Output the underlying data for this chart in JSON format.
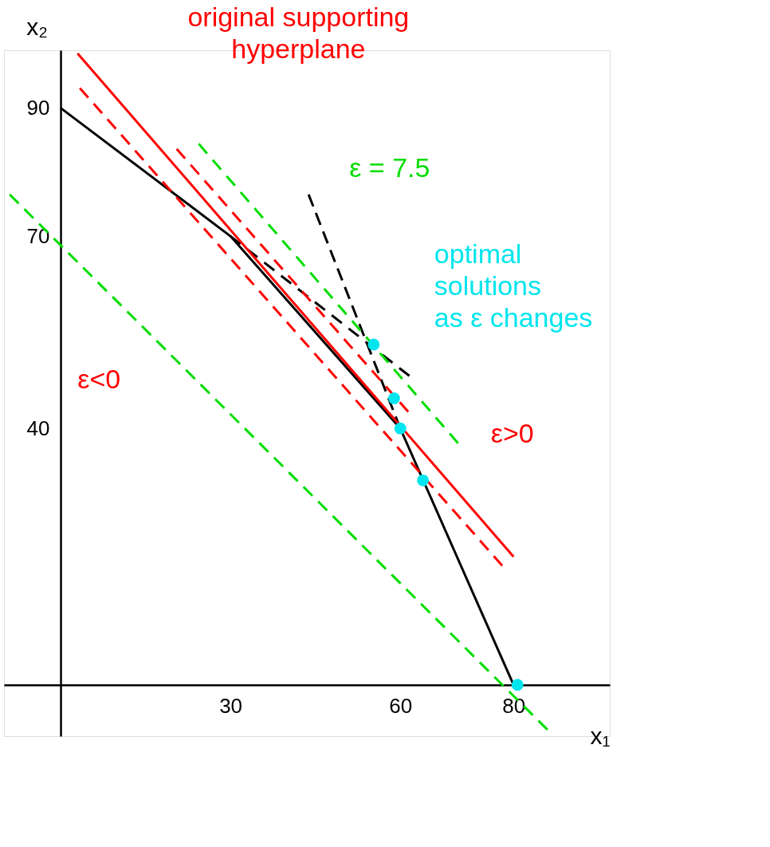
{
  "chart_data": {
    "type": "line",
    "xlabel": "x₁",
    "ylabel": "x₂",
    "xlim": [
      -10,
      97
    ],
    "ylim": [
      -8,
      99
    ],
    "xticks": [
      30,
      60,
      80
    ],
    "yticks": [
      40,
      70,
      90
    ],
    "grid": false,
    "series": [
      {
        "color": "#000000",
        "line_style": "solid",
        "x": [
          0,
          30,
          60,
          80
        ],
        "values": [
          90,
          70,
          40,
          0
        ]
      },
      {
        "color": "#000000",
        "line_style": "dashed",
        "x": [
          30,
          61.6
        ],
        "values": [
          70,
          48.2
        ]
      },
      {
        "color": "#000000",
        "line_style": "dashed",
        "x": [
          43.8,
          60
        ],
        "values": [
          76.5,
          40
        ]
      },
      {
        "color": "#ff0000",
        "line_style": "solid",
        "x": [
          3,
          80
        ],
        "values": [
          98.5,
          20
        ]
      },
      {
        "color": "#ff0000",
        "line_style": "dashed",
        "x": [
          3.4,
          78
        ],
        "values": [
          93.1,
          18.6
        ]
      },
      {
        "color": "#ff0000",
        "line_style": "dashed",
        "x": [
          20.5,
          61.4
        ],
        "values": [
          83.6,
          42.6
        ]
      },
      {
        "color": "#00dd00",
        "line_style": "dashed",
        "x": [
          -9,
          86
        ],
        "values": [
          76.5,
          -7
        ]
      },
      {
        "color": "#00dd00",
        "line_style": "dashed",
        "x": [
          24.4,
          70.2
        ],
        "values": [
          84.4,
          37.7
        ]
      },
      {
        "type": "scatter",
        "color": "#00e5ee",
        "marker": "circle",
        "x": [
          55.3,
          58.9,
          60,
          64,
          80.7
        ],
        "values": [
          53.1,
          44.7,
          40,
          31.9,
          0
        ]
      }
    ],
    "annotations": [
      "original supporting hyperplane",
      "ε = 7.5",
      "optimal solutions as ε changes",
      "ε<0",
      "ε>0"
    ]
  }
}
